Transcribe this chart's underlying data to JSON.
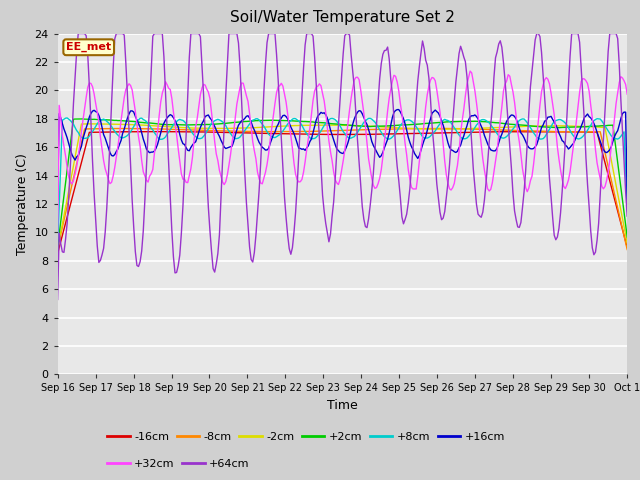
{
  "title": "Soil/Water Temperature Set 2",
  "xlabel": "Time",
  "ylabel": "Temperature (C)",
  "annotation": "EE_met",
  "ylim": [
    0,
    24
  ],
  "yticks": [
    0,
    2,
    4,
    6,
    8,
    10,
    12,
    14,
    16,
    18,
    20,
    22,
    24
  ],
  "fig_bg": "#d0d0d0",
  "ax_bg": "#e8e8e8",
  "series": [
    {
      "label": "-16cm",
      "color": "#dd0000"
    },
    {
      "label": "-8cm",
      "color": "#ff8800"
    },
    {
      "label": "-2cm",
      "color": "#dddd00"
    },
    {
      "label": "+2cm",
      "color": "#00cc00"
    },
    {
      "label": "+8cm",
      "color": "#00cccc"
    },
    {
      "label": "+16cm",
      "color": "#0000cc"
    },
    {
      "label": "+32cm",
      "color": "#ff44ff"
    },
    {
      "label": "+64cm",
      "color": "#9933cc"
    }
  ],
  "xtick_labels": [
    "Sep 16",
    "Sep 17",
    "Sep 18",
    "Sep 19",
    "Sep 20",
    "Sep 21",
    "Sep 22",
    "Sep 23",
    "Sep 24",
    "Sep 25",
    "Sep 26",
    "Sep 27",
    "Sep 28",
    "Sep 29",
    "Sep 30",
    "Oct 1"
  ]
}
